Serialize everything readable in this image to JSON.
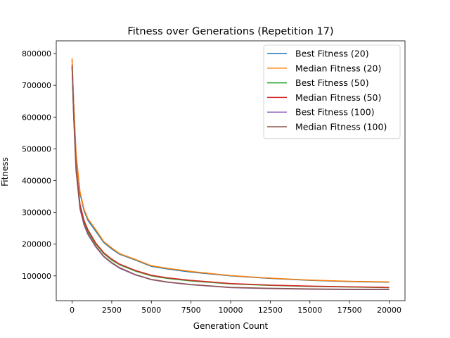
{
  "chart_data": {
    "type": "line",
    "title": "Fitness over Generations (Repetition 17)",
    "xlabel": "Generation Count",
    "ylabel": "Fitness",
    "xlim": [
      -1000,
      21000
    ],
    "ylim": [
      22000,
      840000
    ],
    "xticks": [
      0,
      2500,
      5000,
      7500,
      10000,
      12500,
      15000,
      17500,
      20000
    ],
    "yticks": [
      100000,
      200000,
      300000,
      400000,
      500000,
      600000,
      700000,
      800000
    ],
    "grid": false,
    "legend_position": "top-right",
    "series": [
      {
        "name": "Best Fitness (20)",
        "color": "#1f77b4",
        "x": [
          0,
          100,
          250,
          500,
          750,
          1000,
          1500,
          2000,
          2500,
          3000,
          4000,
          5000,
          6000,
          7500,
          10000,
          12500,
          15000,
          17500,
          20000
        ],
        "y": [
          780000,
          640000,
          480000,
          360000,
          305000,
          275000,
          240000,
          205000,
          185000,
          168000,
          150000,
          130000,
          122000,
          112000,
          100000,
          92000,
          86000,
          82000,
          80000
        ]
      },
      {
        "name": "Median Fitness (20)",
        "color": "#ff7f0e",
        "x": [
          0,
          100,
          250,
          500,
          750,
          1000,
          1500,
          2000,
          2500,
          3000,
          4000,
          5000,
          6000,
          7500,
          10000,
          12500,
          15000,
          17500,
          20000
        ],
        "y": [
          785000,
          645000,
          485000,
          365000,
          310000,
          280000,
          245000,
          208000,
          188000,
          170000,
          152000,
          132000,
          124000,
          114000,
          101000,
          93000,
          87000,
          83000,
          81000
        ]
      },
      {
        "name": "Best Fitness (50)",
        "color": "#2ca02c",
        "x": [
          0,
          100,
          250,
          500,
          750,
          1000,
          1500,
          2000,
          2500,
          3000,
          4000,
          5000,
          6000,
          7500,
          10000,
          12500,
          15000,
          17500,
          20000
        ],
        "y": [
          760000,
          610000,
          440000,
          320000,
          270000,
          240000,
          200000,
          170000,
          150000,
          135000,
          115000,
          100000,
          92000,
          84000,
          75000,
          70000,
          67000,
          65000,
          63000
        ]
      },
      {
        "name": "Median Fitness (50)",
        "color": "#d62728",
        "x": [
          0,
          100,
          250,
          500,
          750,
          1000,
          1500,
          2000,
          2500,
          3000,
          4000,
          5000,
          6000,
          7500,
          10000,
          12500,
          15000,
          17500,
          20000
        ],
        "y": [
          765000,
          615000,
          445000,
          325000,
          275000,
          245000,
          203000,
          173000,
          153000,
          137000,
          117000,
          102000,
          94000,
          86000,
          76000,
          71000,
          68000,
          66000,
          64000
        ]
      },
      {
        "name": "Best Fitness (100)",
        "color": "#9467bd",
        "x": [
          0,
          100,
          250,
          500,
          750,
          1000,
          1500,
          2000,
          2500,
          3000,
          4000,
          5000,
          6000,
          7500,
          10000,
          12500,
          15000,
          17500,
          20000
        ],
        "y": [
          755000,
          600000,
          430000,
          310000,
          260000,
          230000,
          190000,
          160000,
          140000,
          124000,
          103000,
          88000,
          80000,
          72000,
          63000,
          60000,
          58000,
          57000,
          57000
        ]
      },
      {
        "name": "Median Fitness (100)",
        "color": "#8c564b",
        "x": [
          0,
          100,
          250,
          500,
          750,
          1000,
          1500,
          2000,
          2500,
          3000,
          4000,
          5000,
          6000,
          7500,
          10000,
          12500,
          15000,
          17500,
          20000
        ],
        "y": [
          758000,
          603000,
          433000,
          313000,
          263000,
          233000,
          193000,
          162000,
          142000,
          126000,
          104000,
          89000,
          81000,
          73000,
          64000,
          61000,
          59000,
          58000,
          58000
        ]
      }
    ]
  }
}
